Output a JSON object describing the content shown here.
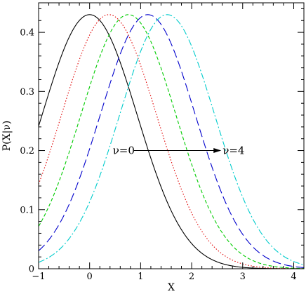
{
  "chart_data": {
    "type": "line",
    "title": "",
    "xlabel": "X",
    "ylabel": "P(X|ν)",
    "xlim": [
      -1,
      4.2
    ],
    "ylim": [
      0,
      0.45
    ],
    "xticks": [
      -1,
      0,
      1,
      2,
      3,
      4
    ],
    "yticks": [
      0,
      0.1,
      0.2,
      0.3,
      0.4
    ],
    "xtick_labels": [
      "−1",
      "0",
      "1",
      "2",
      "3",
      "4"
    ],
    "ytick_labels": [
      "0",
      "0.1",
      "0.2",
      "0.3",
      "0.4"
    ],
    "grid": false,
    "legend": "none",
    "series": [
      {
        "mean": 0.0,
        "sigma": 0.93,
        "peak": 0.43,
        "color": "#000000",
        "style": "solid"
      },
      {
        "mean": 0.38,
        "sigma": 0.93,
        "peak": 0.43,
        "color": "#e00000",
        "style": "dotted"
      },
      {
        "mean": 0.76,
        "sigma": 0.93,
        "peak": 0.43,
        "color": "#00cc00",
        "style": "short-dash"
      },
      {
        "mean": 1.14,
        "sigma": 0.93,
        "peak": 0.43,
        "color": "#0000cc",
        "style": "long-dash"
      },
      {
        "mean": 1.52,
        "sigma": 0.93,
        "peak": 0.43,
        "color": "#00cccc",
        "style": "dash-dot"
      }
    ],
    "annotation": {
      "start_label": "ν=0",
      "end_label": "ν=4",
      "arrow_from": [
        0.87,
        0.2
      ],
      "arrow_to": [
        2.58,
        0.2
      ]
    }
  }
}
